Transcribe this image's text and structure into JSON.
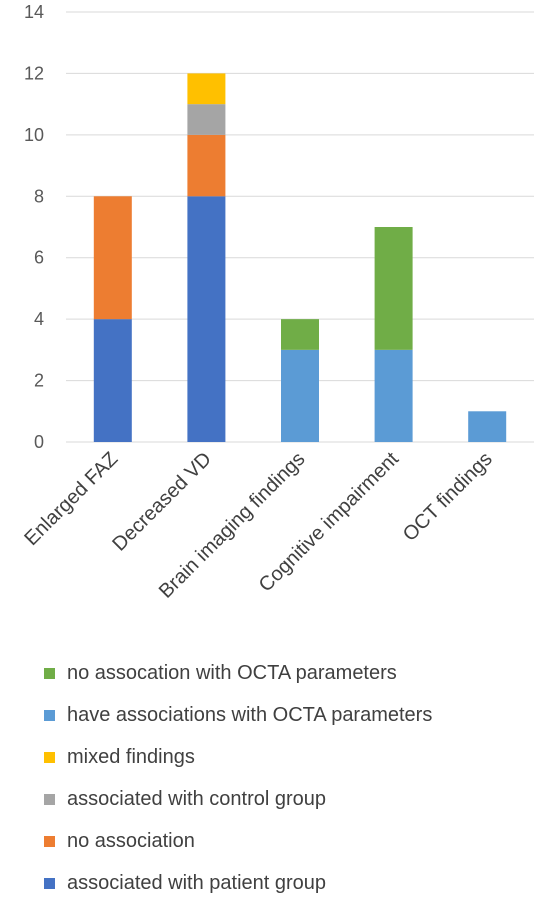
{
  "chart_data": {
    "type": "bar",
    "stacked": true,
    "categories": [
      "Enlarged FAZ",
      "Decreased VD",
      "Brain imaging findings",
      "Cognitive impairment",
      "OCT findings"
    ],
    "series": [
      {
        "name": "associated with patient group",
        "color": "#4472C4",
        "values": [
          4,
          8,
          0,
          0,
          0
        ]
      },
      {
        "name": "no association",
        "color": "#ED7D31",
        "values": [
          4,
          2,
          0,
          0,
          0
        ]
      },
      {
        "name": "associated with control group",
        "color": "#A5A5A5",
        "values": [
          0,
          1,
          0,
          0,
          0
        ]
      },
      {
        "name": "mixed findings",
        "color": "#FFC000",
        "values": [
          0,
          1,
          0,
          0,
          0
        ]
      },
      {
        "name": "have associations with OCTA parameters",
        "color": "#5B9BD5",
        "values": [
          0,
          0,
          3,
          3,
          1
        ]
      },
      {
        "name": "no assocation with OCTA parameters",
        "color": "#70AD47",
        "values": [
          0,
          0,
          1,
          4,
          0
        ]
      }
    ],
    "yticks": [
      0,
      2,
      4,
      6,
      8,
      10,
      12,
      14
    ],
    "ylim": [
      0,
      14
    ],
    "grid": true,
    "legend_position": "bottom",
    "legend_order": [
      "no assocation with OCTA parameters",
      "have associations with OCTA parameters",
      "mixed findings",
      "associated with control group",
      "no association",
      "associated with patient group"
    ]
  }
}
